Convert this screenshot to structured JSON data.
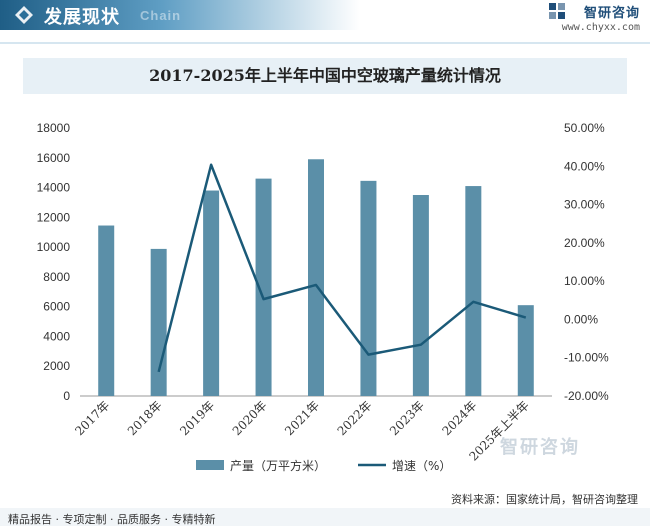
{
  "header": {
    "section_title": "发展现状",
    "ghost_text": "Chain",
    "logo_name": "智研咨询",
    "logo_url": "www.chyxx.com"
  },
  "footer": {
    "tagline": "精品报告 · 专项定制 · 品质服务 · 专精特新",
    "source": "资料来源：国家统计局，智研咨询整理",
    "watermark_brand": "智研咨询"
  },
  "colors": {
    "bar": "#5b8fa8",
    "line": "#1b5a78",
    "header_band": "#1f5e86",
    "title_bg": "#e7f0f6"
  },
  "chart_data": {
    "type": "bar",
    "title": "2017-2025年上半年中国中空玻璃产量统计情况",
    "categories": [
      "2017年",
      "2018年",
      "2019年",
      "2020年",
      "2021年",
      "2022年",
      "2023年",
      "2024年",
      "2025年上半年"
    ],
    "series": [
      {
        "name": "产量（万平方米）",
        "type": "bar",
        "axis": "left",
        "values": [
          11450,
          9880,
          13800,
          14600,
          15900,
          14450,
          13500,
          14100,
          6100
        ]
      },
      {
        "name": "增速（%）",
        "type": "line",
        "axis": "right",
        "values": [
          null,
          -13.7,
          40.4,
          5.3,
          9.0,
          -9.2,
          -6.6,
          4.6,
          0.5
        ]
      }
    ],
    "y_left": {
      "min": 0,
      "max": 18000,
      "step": 2000,
      "ticks": [
        "0",
        "2000",
        "4000",
        "6000",
        "8000",
        "10000",
        "12000",
        "14000",
        "16000",
        "18000"
      ]
    },
    "y_right": {
      "min": -20,
      "max": 50,
      "step": 10,
      "ticks": [
        "-20.00%",
        "-10.00%",
        "0.00%",
        "10.00%",
        "20.00%",
        "30.00%",
        "40.00%",
        "50.00%"
      ]
    },
    "grid": false,
    "legend_position": "bottom-center"
  }
}
